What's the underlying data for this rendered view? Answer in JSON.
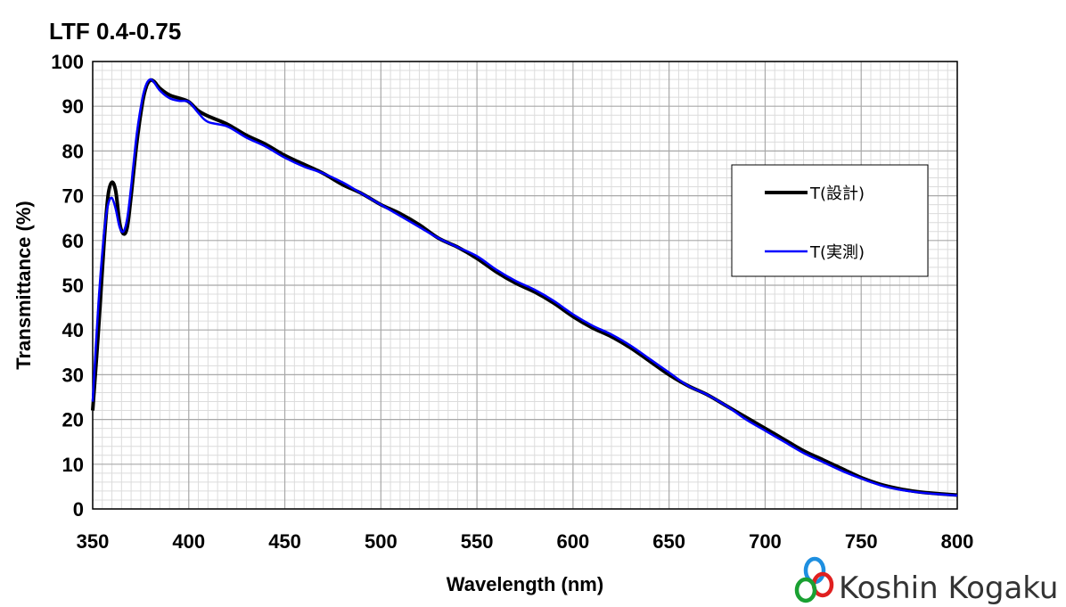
{
  "chart_data": {
    "type": "line",
    "title": "LTF 0.4-0.75",
    "xlabel": "Wavelength (nm)",
    "ylabel": "Transmittance (%)",
    "xlim": [
      350,
      800
    ],
    "ylim": [
      0,
      100
    ],
    "x_ticks": [
      350,
      400,
      450,
      500,
      550,
      600,
      650,
      700,
      750,
      800
    ],
    "y_ticks": [
      0,
      10,
      20,
      30,
      40,
      50,
      60,
      70,
      80,
      90,
      100
    ],
    "grid": true,
    "legend_position": "right",
    "series": [
      {
        "name": "T(設計)",
        "color": "#000000",
        "x": [
          350,
          353,
          356,
          358,
          360,
          362,
          364,
          366,
          368,
          370,
          373,
          376,
          378,
          380,
          382,
          385,
          390,
          395,
          400,
          405,
          410,
          420,
          430,
          440,
          450,
          460,
          470,
          480,
          490,
          500,
          510,
          520,
          530,
          540,
          550,
          560,
          570,
          580,
          590,
          600,
          610,
          620,
          630,
          640,
          650,
          660,
          670,
          680,
          690,
          700,
          710,
          720,
          730,
          740,
          750,
          760,
          770,
          780,
          790,
          800
        ],
        "y": [
          22,
          40,
          60,
          70,
          73,
          71,
          64,
          61.5,
          63,
          70,
          82,
          91,
          94.5,
          95.8,
          95.5,
          94,
          92.5,
          91.8,
          91,
          89,
          87.8,
          86,
          83.5,
          81.5,
          79,
          77,
          75,
          72.5,
          70.5,
          68,
          66,
          63.5,
          60.5,
          58.5,
          56,
          53,
          50.5,
          48.5,
          46,
          43,
          40.5,
          38.5,
          36,
          33,
          30,
          27.5,
          25.5,
          23,
          20.5,
          18,
          15.5,
          13,
          11,
          9,
          7,
          5.5,
          4.5,
          3.8,
          3.4,
          3.1
        ]
      },
      {
        "name": "T(実測)",
        "color": "#0000ff",
        "x": [
          350,
          353,
          356,
          358,
          360,
          362,
          364,
          366,
          368,
          370,
          373,
          376,
          378,
          380,
          382,
          385,
          390,
          395,
          400,
          405,
          410,
          420,
          430,
          440,
          450,
          460,
          470,
          480,
          490,
          500,
          510,
          520,
          530,
          540,
          550,
          560,
          570,
          580,
          590,
          600,
          610,
          620,
          630,
          640,
          650,
          660,
          670,
          680,
          690,
          700,
          710,
          720,
          730,
          740,
          750,
          760,
          770,
          780,
          790,
          800
        ],
        "y": [
          24,
          46,
          62,
          68,
          69.5,
          67,
          63,
          62,
          65,
          72,
          84,
          92,
          95,
          96,
          95.3,
          93.5,
          91.8,
          91.2,
          91,
          88.5,
          86.5,
          85.5,
          83,
          81,
          78.5,
          76.5,
          75,
          73,
          70.5,
          68,
          65.5,
          63,
          60.5,
          58.5,
          56.5,
          53.5,
          51,
          49,
          46.5,
          43.5,
          41,
          39,
          36.5,
          33.5,
          30.5,
          27.5,
          25.5,
          23,
          20,
          17.5,
          15,
          12.5,
          10.5,
          8.5,
          6.8,
          5.3,
          4.3,
          3.7,
          3.3,
          3.0
        ]
      }
    ]
  },
  "brand": {
    "name": "Koshin Kogaku",
    "logo_colors": [
      "#1e8fe0",
      "#e02020",
      "#1aa032"
    ]
  }
}
